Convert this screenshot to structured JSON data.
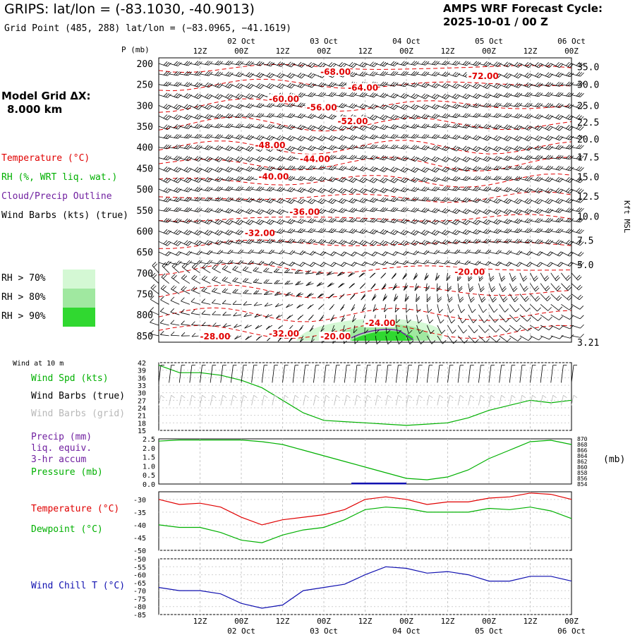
{
  "header": {
    "title": "GRIPS:  lat/lon = (-83.1030, -40.9013)",
    "subtitle": "Grid Point (485, 288) lat/lon = (−83.0965, −41.1619)",
    "cycle_line1": "AMPS WRF Forecast Cycle:",
    "cycle_line2": "2025-10-01 / 00  Z"
  },
  "left_panel": {
    "grid_line1": "Model Grid ΔX:",
    "grid_line2": "8.000 km",
    "legend": [
      {
        "text": "Temperature (°C)",
        "color": "#e00000"
      },
      {
        "text": "RH (%, WRT liq. wat.)",
        "color": "#00b000"
      },
      {
        "text": "Cloud/Precip Outline",
        "color": "#7020a0"
      },
      {
        "text": "Wind Barbs (kts) (true)",
        "color": "#000000"
      }
    ],
    "rh_legend": [
      {
        "text": "RH > 70%",
        "color": "#d4f8d4"
      },
      {
        "text": "RH > 80%",
        "color": "#a0e8a0"
      },
      {
        "text": "RH > 90%",
        "color": "#30d830"
      }
    ]
  },
  "time_axis": {
    "hour_labels": [
      "12Z",
      "00Z",
      "12Z",
      "00Z",
      "12Z",
      "00Z",
      "12Z",
      "00Z",
      "12Z",
      "00Z"
    ],
    "date_labels": [
      "02 Oct",
      "03 Oct",
      "04 Oct",
      "05 Oct",
      "06 Oct"
    ]
  },
  "upper_panel": {
    "p_label": "P (mb)",
    "pressure_ticks": [
      "200",
      "250",
      "300",
      "350",
      "400",
      "450",
      "500",
      "550",
      "600",
      "650",
      "700",
      "750",
      "800",
      "850"
    ],
    "height_ticks": [
      "35.0",
      "30.0",
      "25.0",
      "22.5",
      "20.0",
      "17.5",
      "15.0",
      "12.5",
      "10.0",
      "7.5",
      "5.0",
      "3.21"
    ],
    "right_label": "Kft MSL",
    "temp_labels": [
      "-68.00",
      "-72.00",
      "-64.00",
      "-60.00",
      "-56.00",
      "-52.00",
      "-48.00",
      "-44.00",
      "-40.00",
      "-36.00",
      "-32.00",
      "-20.00",
      "-24.00",
      "-28.00",
      "-32.00",
      "-20.00"
    ]
  },
  "panel_wind": {
    "header": "Wind at 10 m",
    "labels": [
      {
        "text": "Wind Spd (kts)",
        "color": "#00b000"
      },
      {
        "text": "Wind Barbs (true)",
        "color": "#000000"
      },
      {
        "text": "Wind Barbs (grid)",
        "color": "#b8b8b8"
      }
    ],
    "y_ticks": [
      "42",
      "39",
      "36",
      "33",
      "30",
      "27",
      "24",
      "21",
      "18",
      "15"
    ]
  },
  "panel_precip": {
    "labels": [
      {
        "text": "Precip (mm)",
        "color": "#7020a0"
      },
      {
        "text": "liq. equiv.",
        "color": "#7020a0"
      },
      {
        "text": "3-hr accum",
        "color": "#7020a0"
      },
      {
        "text": "Pressure (mb)",
        "color": "#00b000"
      }
    ],
    "y_ticks_left": [
      "2.5",
      "2.0",
      "1.5",
      "1.0",
      "0.5",
      "0.0"
    ],
    "y_ticks_right": [
      "870",
      "868",
      "866",
      "864",
      "862",
      "860",
      "858",
      "856",
      "854"
    ],
    "unit_right": "(mb)"
  },
  "panel_temp": {
    "labels": [
      {
        "text": "Temperature (°C)",
        "color": "#e00000"
      },
      {
        "text": "Dewpoint (°C)",
        "color": "#00b000"
      }
    ],
    "y_ticks": [
      "-30",
      "-35",
      "-40",
      "-45",
      "-50"
    ]
  },
  "panel_chill": {
    "labels": [
      {
        "text": "Wind Chill T (°C)",
        "color": "#1010b0"
      }
    ],
    "y_ticks": [
      "-50",
      "-55",
      "-60",
      "-65",
      "-70",
      "-75",
      "-80",
      "-85"
    ]
  },
  "chart_data": [
    {
      "type": "line",
      "title": "Wind Spd (kts)",
      "x": [
        0,
        6,
        12,
        18,
        24,
        30,
        36,
        42,
        48,
        54,
        60,
        66,
        72,
        78,
        84,
        90,
        96,
        102,
        108,
        114,
        120
      ],
      "series": [
        {
          "name": "Wind Spd (kts)",
          "color": "#00b000",
          "values": [
            41,
            38,
            38,
            37,
            35,
            32,
            27,
            22,
            19,
            18.5,
            18,
            17.5,
            17,
            17.5,
            18,
            20,
            23,
            25,
            27,
            26,
            27
          ]
        }
      ],
      "ylim": [
        15,
        42
      ]
    },
    {
      "type": "line",
      "title": "Pressure (mb)",
      "x": [
        0,
        6,
        12,
        18,
        24,
        30,
        36,
        42,
        48,
        54,
        60,
        66,
        72,
        78,
        84,
        90,
        96,
        102,
        108,
        114,
        120
      ],
      "series": [
        {
          "name": "Pressure (mb)",
          "color": "#00b000",
          "values": [
            869.2,
            869.6,
            869.6,
            869.6,
            869.6,
            869,
            868,
            866,
            864,
            862,
            860,
            858,
            856,
            855.5,
            856.5,
            859,
            863,
            866,
            869,
            869.5,
            868
          ],
          "axis_range": [
            854,
            870
          ]
        },
        {
          "name": "Precip (mm)",
          "color": "#1010b0",
          "values": [
            0,
            0,
            0,
            0,
            0,
            0,
            0,
            0,
            0,
            0,
            0,
            0.03,
            0.03,
            0.02,
            0,
            0,
            0,
            0,
            0,
            0,
            0
          ],
          "axis_range": [
            0,
            2.5
          ]
        }
      ]
    },
    {
      "type": "line",
      "title": "Temperature / Dewpoint (°C)",
      "x": [
        0,
        6,
        12,
        18,
        24,
        30,
        36,
        42,
        48,
        54,
        60,
        66,
        72,
        78,
        84,
        90,
        96,
        102,
        108,
        114,
        120
      ],
      "series": [
        {
          "name": "Temperature (°C)",
          "color": "#e00000",
          "values": [
            -30,
            -32,
            -31.5,
            -33,
            -37,
            -40,
            -38,
            -37,
            -36,
            -34,
            -30,
            -29,
            -30,
            -32,
            -31,
            -31,
            -29.5,
            -29,
            -27.5,
            -28,
            -30
          ]
        },
        {
          "name": "Dewpoint (°C)",
          "color": "#00b000",
          "values": [
            -40,
            -41,
            -41,
            -43,
            -46,
            -47,
            -44,
            -42,
            -41,
            -38,
            -34,
            -33,
            -33.5,
            -35,
            -35,
            -35,
            -33.5,
            -34,
            -33,
            -34.5,
            -37.5
          ]
        }
      ],
      "ylim": [
        -50,
        -27
      ]
    },
    {
      "type": "line",
      "title": "Wind Chill T (°C)",
      "x": [
        0,
        6,
        12,
        18,
        24,
        30,
        36,
        42,
        48,
        54,
        60,
        66,
        72,
        78,
        84,
        90,
        96,
        102,
        108,
        114,
        120
      ],
      "series": [
        {
          "name": "Wind Chill T (°C)",
          "color": "#1010b0",
          "values": [
            -68,
            -70,
            -70,
            -72,
            -78,
            -81,
            -79,
            -70,
            -68,
            -66,
            -60,
            -55,
            -56,
            -59,
            -58,
            -60,
            -64,
            -64,
            -61,
            -61,
            -64
          ]
        }
      ],
      "ylim": [
        -85,
        -50
      ]
    }
  ]
}
